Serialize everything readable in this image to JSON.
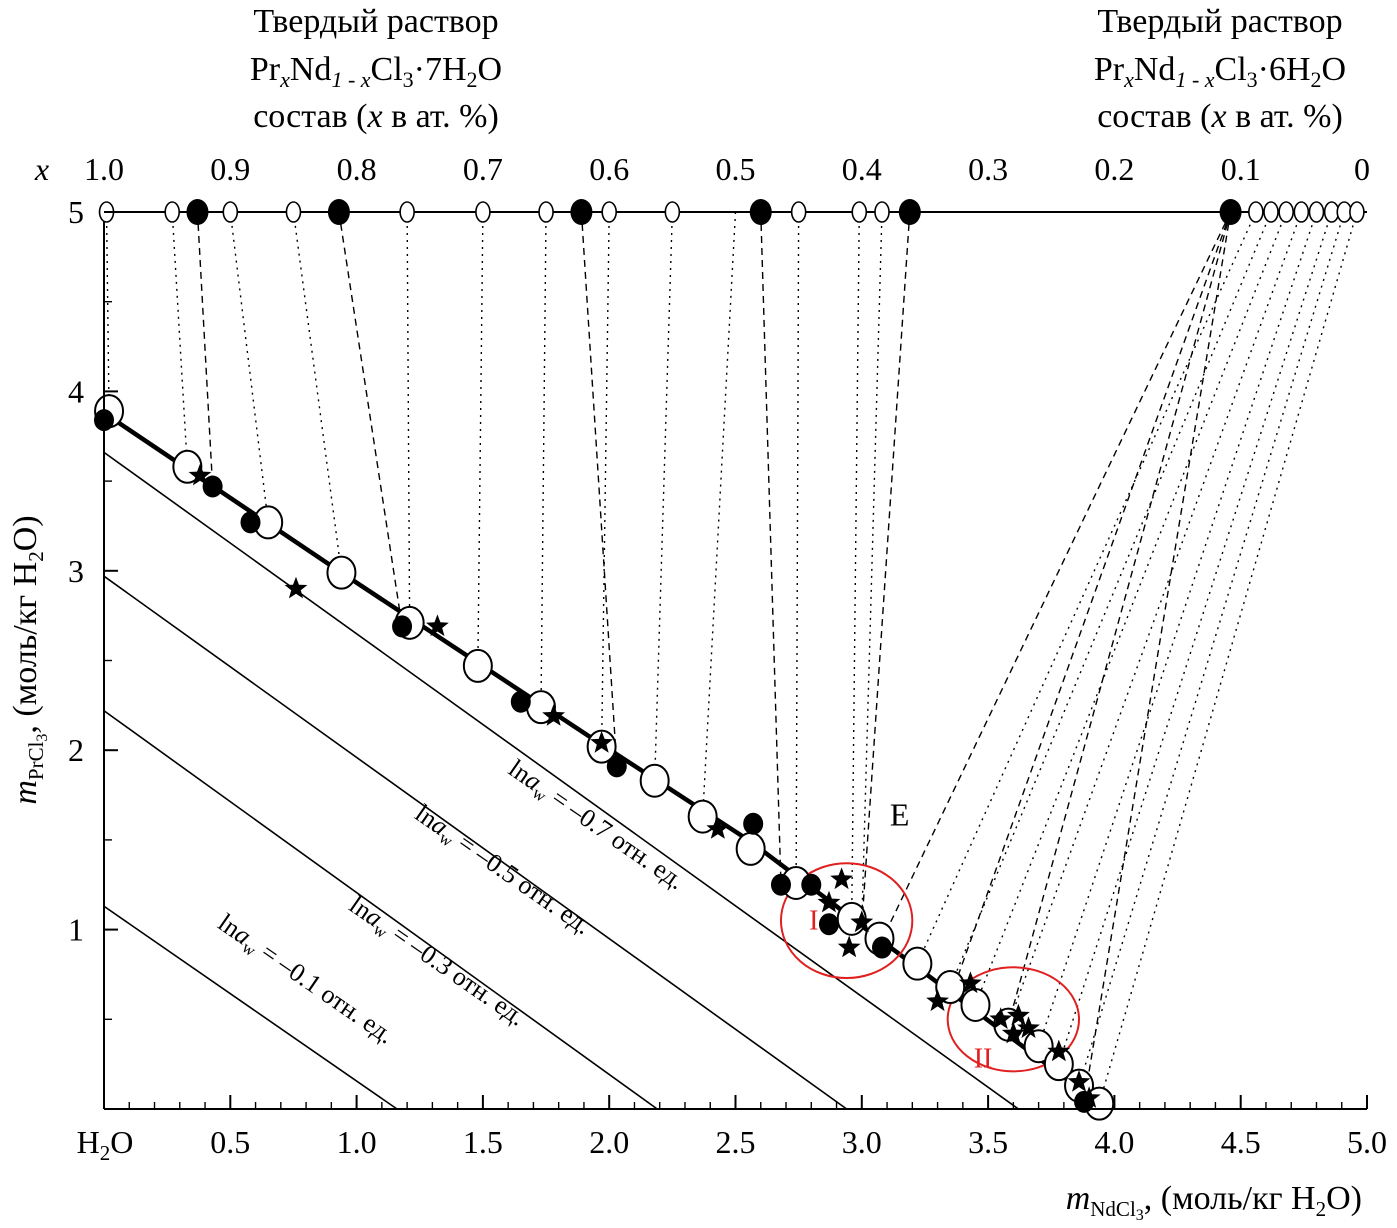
{
  "chart_data": {
    "type": "scatter",
    "title": "",
    "xlabel_main": "m",
    "xlabel_sub": "NdCl",
    "xlabel_sub2": "3",
    "xlabel_units": ", (моль/кг H",
    "xlabel_units2": "2",
    "xlabel_units3": "O)",
    "ylabel_main": "m",
    "ylabel_sub": "PrCl",
    "ylabel_sub2": "3",
    "ylabel_units": ", (моль/кг H",
    "ylabel_units2": "2",
    "ylabel_units3": "O)",
    "xlim": [
      0,
      5.0
    ],
    "ylim": [
      0,
      5
    ],
    "x_ticks": [
      {
        "v": 0.5,
        "label": "0.5"
      },
      {
        "v": 1.0,
        "label": "1.0"
      },
      {
        "v": 1.5,
        "label": "1.5"
      },
      {
        "v": 2.0,
        "label": "2.0"
      },
      {
        "v": 2.5,
        "label": "2.5"
      },
      {
        "v": 3.0,
        "label": "3.0"
      },
      {
        "v": 3.5,
        "label": "3.5"
      },
      {
        "v": 4.0,
        "label": "4.0"
      },
      {
        "v": 4.5,
        "label": "4.5"
      },
      {
        "v": 5.0,
        "label": "5.0"
      }
    ],
    "x_origin_label": "H",
    "x_origin_sub": "2",
    "x_origin_tail": "O",
    "y_ticks": [
      {
        "v": 1,
        "label": "1"
      },
      {
        "v": 2,
        "label": "2"
      },
      {
        "v": 3,
        "label": "3"
      },
      {
        "v": 4,
        "label": "4"
      },
      {
        "v": 5,
        "label": "5"
      }
    ],
    "top_axis": {
      "label": "x",
      "ticks": [
        {
          "x": 0.0,
          "label": "1.0"
        },
        {
          "x": 0.5,
          "label": "0.9"
        },
        {
          "x": 1.0,
          "label": "0.8"
        },
        {
          "x": 1.5,
          "label": "0.7"
        },
        {
          "x": 2.0,
          "label": "0.6"
        },
        {
          "x": 2.5,
          "label": "0.5"
        },
        {
          "x": 3.0,
          "label": "0.4"
        },
        {
          "x": 3.5,
          "label": "0.3"
        },
        {
          "x": 4.0,
          "label": "0.2"
        },
        {
          "x": 4.5,
          "label": "0.1"
        },
        {
          "x": 4.98,
          "label": "0"
        }
      ]
    },
    "header_left": {
      "line1": "Твердый раствор",
      "f1": "Pr",
      "f2": "x",
      "f3": "Nd",
      "f4": "1 - x",
      "f5": "Cl",
      "f6": "3",
      "f7": "·7H",
      "f8": "2",
      "f9": "O",
      "c1": "состав (",
      "c2": "x",
      "c3": " в ат. %)"
    },
    "header_right": {
      "line1": "Твердый раствор",
      "f1": "Pr",
      "f2": "x",
      "f3": "Nd",
      "f4": "1 - x",
      "f5": "Cl",
      "f6": "3",
      "f7": "·6H",
      "f8": "2",
      "f9": "O",
      "c1": "состав (",
      "c2": "x",
      "c3": " в ат. %)"
    },
    "isolines": [
      {
        "label_pre": "ln",
        "label_a": "a",
        "label_w": "w",
        "label_post": " = –0.1 отн. ед.",
        "x0": 0.0,
        "y0": 1.13,
        "x1": 1.16,
        "y1": 0.0
      },
      {
        "label_pre": "ln",
        "label_a": "a",
        "label_w": "w",
        "label_post": " = –0.3 отн. ед.",
        "x0": 0.0,
        "y0": 2.22,
        "x1": 2.19,
        "y1": 0.0
      },
      {
        "label_pre": "ln",
        "label_a": "a",
        "label_w": "w",
        "label_post": " = –0.5 отн. ед.",
        "x0": 0.0,
        "y0": 2.97,
        "x1": 2.94,
        "y1": 0.0
      },
      {
        "label_pre": "ln",
        "label_a": "a",
        "label_w": "w",
        "label_post": " = –0.7 отн. ед.",
        "x0": 0.0,
        "y0": 3.66,
        "x1": 3.62,
        "y1": 0.0
      }
    ],
    "solubility_curve": [
      [
        0.0,
        3.88
      ],
      [
        0.95,
        2.98
      ],
      [
        1.95,
        2.05
      ],
      [
        2.55,
        1.5
      ],
      [
        2.9,
        1.13
      ],
      [
        3.0,
        1.02
      ],
      [
        3.95,
        0.02
      ]
    ],
    "open_circles": [
      [
        0.02,
        3.89
      ],
      [
        0.33,
        3.58
      ],
      [
        0.65,
        3.27
      ],
      [
        0.94,
        2.99
      ],
      [
        1.21,
        2.71
      ],
      [
        1.48,
        2.47
      ],
      [
        1.73,
        2.24
      ],
      [
        1.97,
        2.02
      ],
      [
        2.18,
        1.83
      ],
      [
        2.37,
        1.63
      ],
      [
        2.56,
        1.45
      ],
      [
        2.74,
        1.26
      ],
      [
        2.96,
        1.06
      ],
      [
        3.07,
        0.95
      ],
      [
        3.22,
        0.81
      ],
      [
        3.35,
        0.68
      ],
      [
        3.45,
        0.58
      ],
      [
        3.58,
        0.47
      ],
      [
        3.7,
        0.35
      ],
      [
        3.78,
        0.25
      ],
      [
        3.86,
        0.13
      ],
      [
        3.94,
        0.03
      ]
    ],
    "filled_circles": [
      [
        0.0,
        3.84
      ],
      [
        0.43,
        3.47
      ],
      [
        0.58,
        3.27
      ],
      [
        1.18,
        2.69
      ],
      [
        1.65,
        2.27
      ],
      [
        2.03,
        1.91
      ],
      [
        2.57,
        1.59
      ],
      [
        2.68,
        1.25
      ],
      [
        2.8,
        1.25
      ],
      [
        2.87,
        1.03
      ],
      [
        3.08,
        0.9
      ],
      [
        3.88,
        0.04
      ]
    ],
    "stars": [
      [
        0.38,
        3.53
      ],
      [
        0.76,
        2.9
      ],
      [
        1.32,
        2.69
      ],
      [
        1.78,
        2.19
      ],
      [
        1.97,
        2.04
      ],
      [
        2.43,
        1.56
      ],
      [
        2.92,
        1.28
      ],
      [
        2.87,
        1.15
      ],
      [
        2.95,
        0.9
      ],
      [
        3.0,
        1.04
      ],
      [
        3.3,
        0.6
      ],
      [
        3.43,
        0.7
      ],
      [
        3.55,
        0.5
      ],
      [
        3.62,
        0.52
      ],
      [
        3.66,
        0.45
      ],
      [
        3.6,
        0.42
      ],
      [
        3.78,
        0.32
      ],
      [
        3.86,
        0.15
      ],
      [
        3.9,
        0.06
      ]
    ],
    "top_open": [
      0.01,
      0.27,
      0.5,
      0.75,
      1.2,
      1.5,
      1.75,
      2.0,
      2.25,
      2.75,
      2.99,
      3.08,
      4.56,
      4.62,
      4.68,
      4.74,
      4.8,
      4.86,
      4.91,
      4.96
    ],
    "top_filled": [
      0.37,
      0.93,
      1.89,
      2.6,
      3.19,
      4.46
    ],
    "tielines_dotted": [
      [
        0.01,
        0.02,
        3.89
      ],
      [
        0.27,
        0.33,
        3.58
      ],
      [
        0.5,
        0.65,
        3.27
      ],
      [
        0.75,
        0.94,
        2.99
      ],
      [
        1.2,
        1.21,
        2.71
      ],
      [
        1.5,
        1.48,
        2.47
      ],
      [
        1.75,
        1.73,
        2.24
      ],
      [
        2.0,
        1.97,
        2.02
      ],
      [
        2.25,
        2.18,
        1.83
      ],
      [
        2.5,
        2.37,
        1.63
      ],
      [
        2.75,
        2.74,
        1.26
      ],
      [
        2.99,
        2.96,
        1.06
      ],
      [
        3.08,
        3.0,
        1.04
      ],
      [
        4.56,
        3.22,
        0.81
      ],
      [
        4.62,
        3.35,
        0.68
      ],
      [
        4.68,
        3.45,
        0.58
      ],
      [
        4.74,
        3.58,
        0.47
      ],
      [
        4.8,
        3.7,
        0.35
      ],
      [
        4.86,
        3.78,
        0.25
      ],
      [
        4.91,
        3.86,
        0.13
      ],
      [
        4.96,
        3.94,
        0.03
      ]
    ],
    "tielines_dashed": [
      [
        0.37,
        0.43,
        3.47
      ],
      [
        0.93,
        1.18,
        2.69
      ],
      [
        1.89,
        2.03,
        1.91
      ],
      [
        2.6,
        2.68,
        1.25
      ],
      [
        3.19,
        3.0,
        1.02
      ],
      [
        4.46,
        3.35,
        0.62
      ],
      [
        4.46,
        3.58,
        0.47
      ],
      [
        4.46,
        3.88,
        0.04
      ],
      [
        4.46,
        3.1,
        1.0
      ]
    ],
    "ellipses": [
      {
        "label": "I",
        "cx": 2.94,
        "cy": 1.05,
        "rx": 0.26,
        "ry": 0.32,
        "color": "#e02020"
      },
      {
        "label": "II",
        "cx": 3.6,
        "cy": 0.5,
        "rx": 0.26,
        "ry": 0.29,
        "color": "#e02020"
      }
    ],
    "eutectic_label": {
      "label": "E",
      "x": 3.15,
      "y": 1.58
    }
  }
}
